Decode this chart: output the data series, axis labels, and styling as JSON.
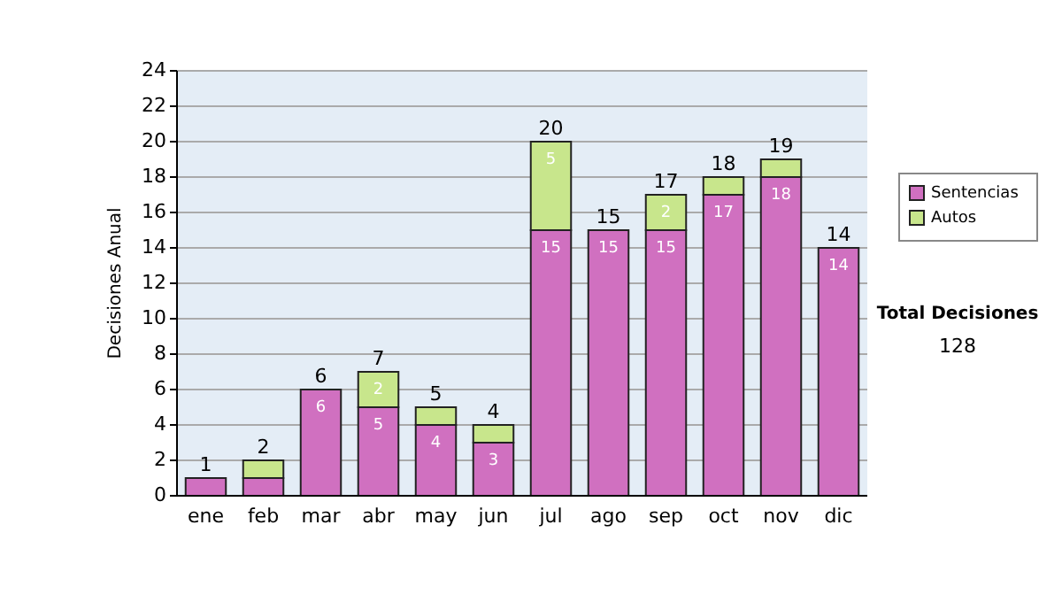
{
  "chart_data": {
    "type": "bar",
    "stacked": true,
    "ylabel": "Decisiones Anual",
    "categories": [
      "ene",
      "feb",
      "mar",
      "abr",
      "may",
      "jun",
      "jul",
      "ago",
      "sep",
      "oct",
      "nov",
      "dic"
    ],
    "series": [
      {
        "name": "Sentencias",
        "color": "#d070c0",
        "values": [
          1,
          1,
          6,
          5,
          4,
          3,
          15,
          15,
          15,
          17,
          18,
          14
        ],
        "value_labels": [
          null,
          null,
          "6",
          "5",
          "4",
          "3",
          "15",
          "15",
          "15",
          "17",
          "18",
          "14"
        ]
      },
      {
        "name": "Autos",
        "color": "#c8e68c",
        "values": [
          0,
          1,
          0,
          2,
          1,
          1,
          5,
          0,
          2,
          1,
          1,
          0
        ],
        "value_labels": [
          null,
          null,
          null,
          "2",
          null,
          null,
          "5",
          null,
          "2",
          null,
          null,
          null
        ]
      }
    ],
    "totals": [
      "1",
      "2",
      "6",
      "7",
      "5",
      "4",
      "20",
      "15",
      "17",
      "18",
      "19",
      "14"
    ],
    "ylim": [
      0,
      24
    ],
    "yticks": [
      0,
      2,
      4,
      6,
      8,
      10,
      12,
      14,
      16,
      18,
      20,
      22,
      24
    ],
    "grid": "y",
    "legend": "right",
    "annotations": [
      "Total Decisiones",
      "128"
    ]
  }
}
